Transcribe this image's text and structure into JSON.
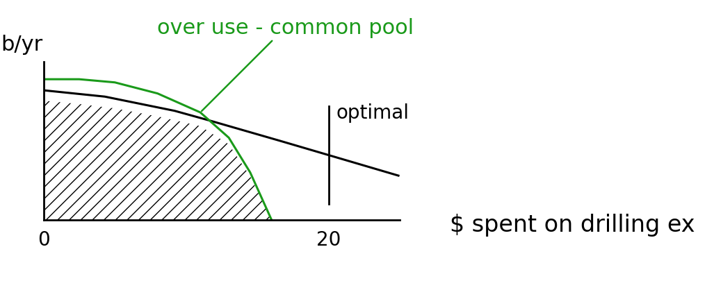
{
  "chart_data": {
    "type": "line",
    "ylabel": "b/yr",
    "xlabel": "$ spent on drilling ex",
    "series": [
      {
        "color": "#000000",
        "x": [
          0,
          4.3,
          9.2,
          11.6,
          16.6,
          20,
          24.9
        ],
        "values": [
          8.2,
          7.8,
          6.9,
          6.3,
          5.0,
          4.1,
          2.8
        ]
      },
      {
        "name": "over use - common pool",
        "color": "#1a9a1a",
        "x": [
          0,
          2.5,
          5,
          8,
          11,
          13,
          14.5,
          15.5,
          16
        ],
        "values": [
          8.9,
          8.9,
          8.7,
          8.0,
          6.8,
          5.2,
          3.0,
          1.0,
          0
        ]
      }
    ],
    "reference_lines": [
      {
        "x": 20,
        "label": "optimal"
      }
    ],
    "xlim": [
      0,
      25
    ],
    "ylim": [
      0,
      10
    ],
    "xticks": [
      0,
      20
    ],
    "yticks": [],
    "tick_labels": "x",
    "grid": false
  }
}
